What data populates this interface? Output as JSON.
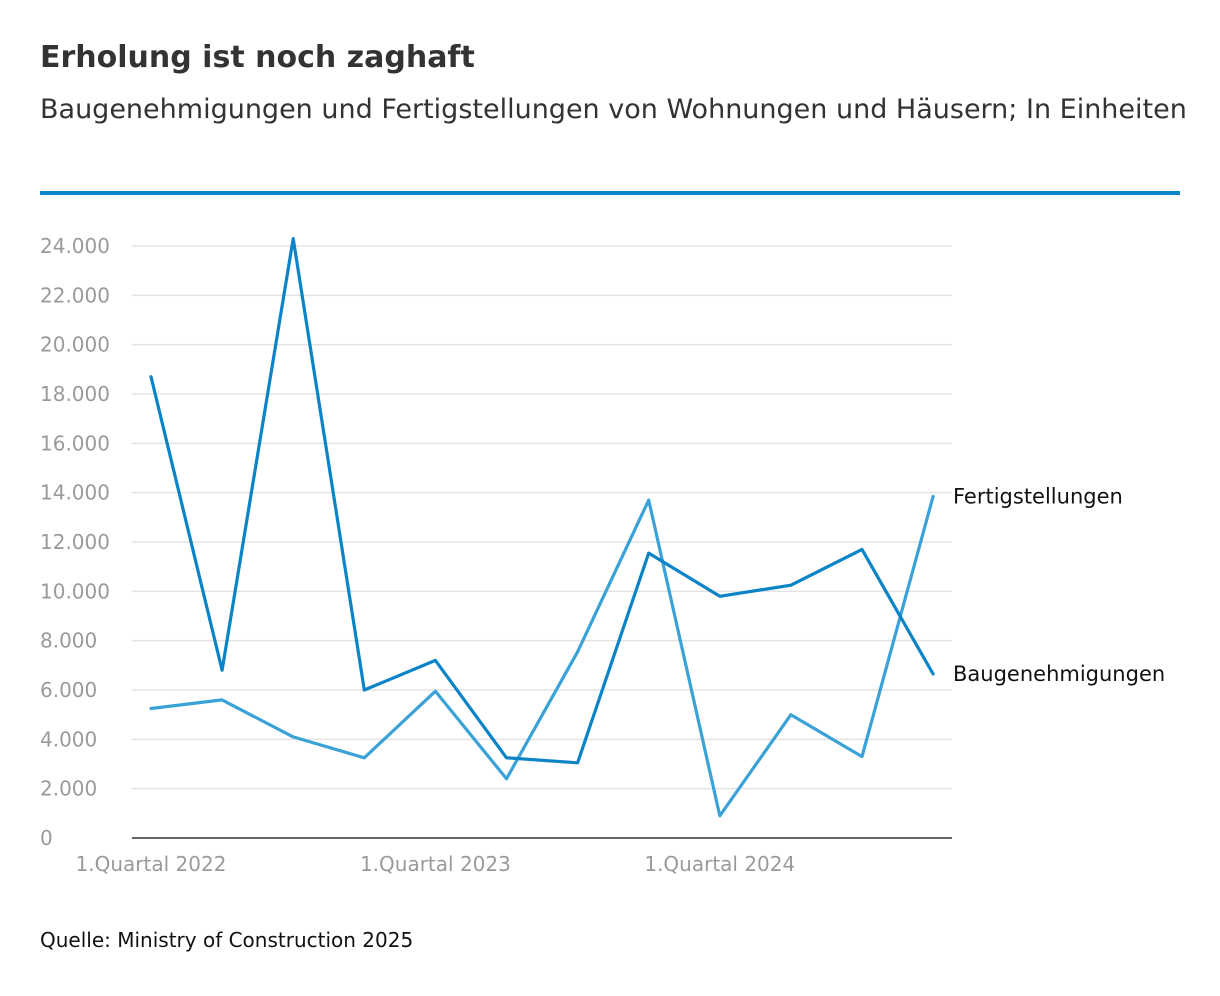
{
  "title": "Erholung ist noch zaghaft",
  "subtitle": "Baugenehmigungen und Fertigstellungen von Wohnungen und Häusern; In Einheiten",
  "source": "Quelle: Ministry of Construction 2025",
  "colors": {
    "baugenehmigungen": "#0a84c6",
    "fertigstellungen": "#3aa2d6",
    "accent_rule": "#0a84c6",
    "grid": "#e3e3e3",
    "axis": "#333333"
  },
  "chart_data": {
    "type": "line",
    "title": "Erholung ist noch zaghaft",
    "xlabel": "",
    "ylabel": "",
    "ylim": [
      0,
      24000
    ],
    "yticks": [
      0,
      2000,
      4000,
      6000,
      8000,
      10000,
      12000,
      14000,
      16000,
      18000,
      20000,
      22000,
      24000
    ],
    "ytick_labels": [
      "0",
      "2.000",
      "4.000",
      "6.000",
      "8.000",
      "10.000",
      "12.000",
      "14.000",
      "16.000",
      "18.000",
      "20.000",
      "22.000",
      "24.000"
    ],
    "x": [
      0,
      1,
      2,
      3,
      4,
      5,
      6,
      7,
      8,
      9,
      10,
      11
    ],
    "xticks": [
      {
        "index": 0,
        "label": "1.Quartal 2022"
      },
      {
        "index": 4,
        "label": "1.Quartal 2023"
      },
      {
        "index": 8,
        "label": "1.Quartal 2024"
      }
    ],
    "grid": true,
    "legend": "direct labels at line ends (right)",
    "series": [
      {
        "name": "Baugenehmigungen",
        "color": "#0a84c6",
        "values": [
          18700,
          6800,
          24300,
          6000,
          7200,
          3250,
          3050,
          11550,
          9800,
          10250,
          11700,
          6650
        ]
      },
      {
        "name": "Fertigstellungen",
        "color": "#3aa2d6",
        "values": [
          5250,
          5600,
          4100,
          3250,
          5950,
          2400,
          7550,
          13700,
          900,
          5000,
          3300,
          13850
        ]
      }
    ]
  }
}
